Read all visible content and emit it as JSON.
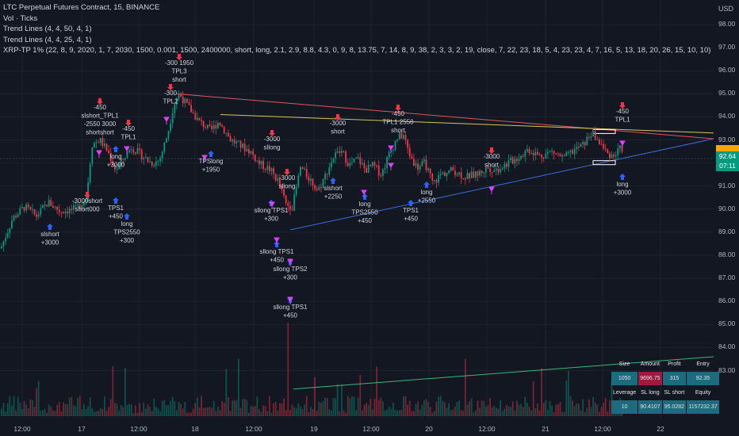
{
  "legend": {
    "title": "LTC Perpetual Futures Contract, 15, BINANCE",
    "vol": "Vol · Ticks",
    "trend1": "Trend Lines (4, 4, 50, 4, 1)",
    "trend2": "Trend Lines (4, 4, 25, 4, 1)",
    "strategy": "XRP-TP 1% (22, 8, 9, 2020, 1, 7, 2030, 1500, 0.001, 1500, 2400000, short, long, 2.1, 2.9, 8.8, 4.3, 0, 9, 8, 13.75, 7, 14, 8, 9, 38, 2, 3, 3, 2, 19, close, 7, 22, 23, 18, 5, 4, 23, 23, 4, 7, 16, 5, 13, 18, 20, 26, 15, 10, 10)"
  },
  "axis": {
    "currency": "USD",
    "price_labels": [
      "98.00",
      "97.00",
      "96.00",
      "95.00",
      "94.00",
      "93.00",
      "92.00",
      "91.00",
      "90.00",
      "89.00",
      "88.00",
      "87.00",
      "86.00",
      "85.00",
      "84.00",
      "83.00"
    ],
    "time_labels": [
      "12:00",
      "17",
      "12:00",
      "18",
      "12:00",
      "19",
      "12:00",
      "20",
      "12:00",
      "21",
      "12:00",
      "22"
    ],
    "last_price": "92.64",
    "countdown": "07:11"
  },
  "table": {
    "row1_headers": [
      "Size",
      "Amount",
      "Profit",
      "Entry"
    ],
    "row1_values": [
      "1050",
      "9696.75",
      "315",
      "92.35"
    ],
    "row2_headers": [
      "Leverage",
      "SL long",
      "SL short",
      "Equity"
    ],
    "row2_values": [
      "10",
      "90.4107",
      "95.0282",
      "1157232.37"
    ]
  },
  "annotations": [
    {
      "lines": [
        "-450",
        "slshort_TPL1",
        "-2550 3000",
        "shortshort"
      ],
      "dir": "down"
    },
    {
      "lines": [
        "-450",
        "TPL1"
      ],
      "dir": "down"
    },
    {
      "lines": [
        "-300",
        "TPL2"
      ],
      "dir": "down"
    },
    {
      "lines": [
        "-300 1950",
        "TPL3",
        "short"
      ],
      "dir": "down"
    },
    {
      "lines": [
        "long",
        "+3000"
      ],
      "dir": "up"
    },
    {
      "lines": [
        "-3000short",
        "short000"
      ],
      "dir": "down"
    },
    {
      "lines": [
        "TPS1",
        "+450"
      ],
      "dir": "up"
    },
    {
      "lines": [
        "long",
        "TPS2550",
        "+300"
      ],
      "dir": "up"
    },
    {
      "lines": [
        "slshort",
        "+3000"
      ],
      "dir": "up"
    },
    {
      "lines": [
        "TPSlong",
        "+1950"
      ],
      "dir": "up"
    },
    {
      "lines": [
        "-3000",
        "sllong"
      ],
      "dir": "down"
    },
    {
      "lines": [
        "-3000",
        "sllong"
      ],
      "dir": "down"
    },
    {
      "lines": [
        "sllong TPS1",
        "+300"
      ],
      "dir": "up"
    },
    {
      "lines": [
        "sllong TPS1",
        "+450"
      ],
      "dir": "up"
    },
    {
      "lines": [
        "sllong TPS2",
        "+300"
      ],
      "dir": "up"
    },
    {
      "lines": [
        "sllong TPS1",
        "+450"
      ],
      "dir": "up"
    },
    {
      "lines": [
        "-3000",
        "short"
      ],
      "dir": "down"
    },
    {
      "lines": [
        "slshort",
        "+2250"
      ],
      "dir": "up"
    },
    {
      "lines": [
        "long",
        "TPS2550",
        "+450"
      ],
      "dir": "up"
    },
    {
      "lines": [
        "-450",
        "TPL1 2550",
        "short"
      ],
      "dir": "down"
    },
    {
      "lines": [
        "TPS1",
        "+450"
      ],
      "dir": "up"
    },
    {
      "lines": [
        "long",
        "+2550"
      ],
      "dir": "up"
    },
    {
      "lines": [
        "-3000",
        "short"
      ],
      "dir": "down"
    },
    {
      "lines": [
        "-450",
        "TPL1"
      ],
      "dir": "down"
    },
    {
      "lines": [
        "long",
        "+3000"
      ],
      "dir": "up"
    }
  ],
  "colors": {
    "background": "#131722",
    "up": "#089981",
    "down": "#f23645",
    "trend_red": "#e05757",
    "trend_yellow": "#d9c35a",
    "trend_blue": "#3a6fd8",
    "trend_green": "#3cb878",
    "marker_magenta": "#e040fb",
    "marker_blue": "#2962ff"
  }
}
